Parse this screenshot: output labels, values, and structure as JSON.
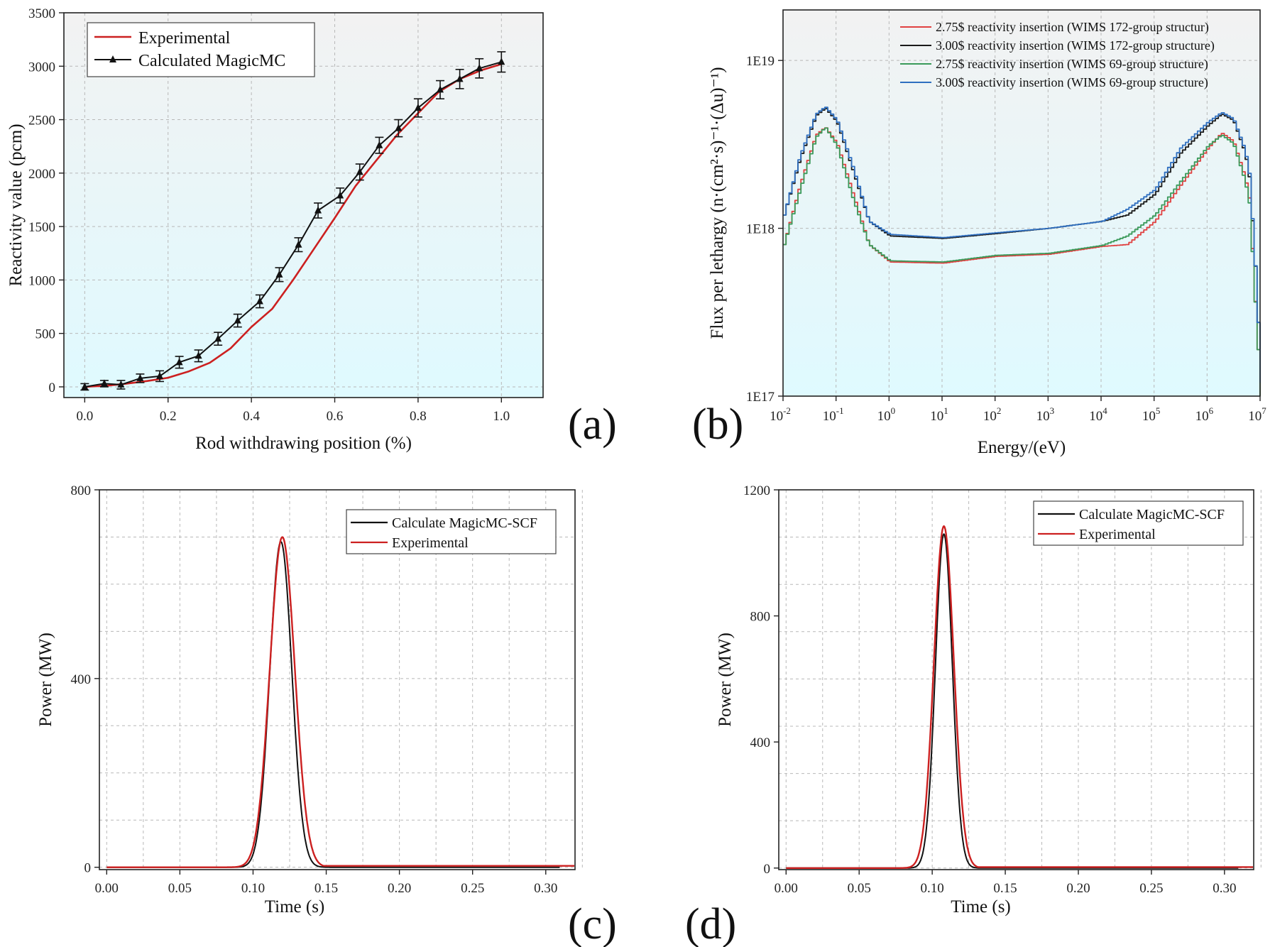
{
  "chart_data": [
    {
      "id": "a",
      "type": "line",
      "panel_label": "(a)",
      "xlabel": "Rod withdrawing position (%)",
      "ylabel": "Reactivity value (pcm)",
      "xlim": [
        -0.05,
        1.1
      ],
      "ylim": [
        -100,
        3500
      ],
      "xticks": [
        "0.0",
        "0.2",
        "0.4",
        "0.6",
        "0.8",
        "1.0"
      ],
      "yticks": [
        "0",
        "500",
        "1000",
        "1500",
        "2000",
        "2500",
        "3000",
        "3500"
      ],
      "grid": true,
      "legend": "top-left",
      "series": [
        {
          "name": "Experimental",
          "color": "#cc2020",
          "marker": "none",
          "x": [
            0,
            0.05,
            0.1,
            0.15,
            0.2,
            0.25,
            0.3,
            0.35,
            0.4,
            0.45,
            0.5,
            0.55,
            0.6,
            0.65,
            0.7,
            0.75,
            0.8,
            0.85,
            0.9,
            0.95,
            1.0
          ],
          "y": [
            0,
            10,
            30,
            55,
            85,
            145,
            225,
            360,
            560,
            730,
            1000,
            1290,
            1580,
            1880,
            2120,
            2360,
            2560,
            2760,
            2880,
            2960,
            3020
          ]
        },
        {
          "name": "Calculated MagicMC",
          "color": "#111111",
          "marker": "triangle",
          "x": [
            0,
            0.047,
            0.087,
            0.133,
            0.18,
            0.227,
            0.273,
            0.32,
            0.367,
            0.42,
            0.467,
            0.513,
            0.56,
            0.613,
            0.66,
            0.707,
            0.753,
            0.8,
            0.853,
            0.9,
            0.947,
            1.0
          ],
          "y": [
            0,
            30,
            20,
            80,
            100,
            230,
            290,
            450,
            620,
            800,
            1050,
            1330,
            1650,
            1790,
            2010,
            2260,
            2420,
            2610,
            2780,
            2880,
            2980,
            3040
          ],
          "err": [
            30,
            30,
            40,
            40,
            50,
            55,
            55,
            60,
            60,
            60,
            65,
            65,
            70,
            70,
            75,
            75,
            80,
            85,
            85,
            90,
            90,
            95
          ]
        }
      ]
    },
    {
      "id": "b",
      "type": "line",
      "panel_label": "(b)",
      "xlabel": "Energy/(eV)",
      "ylabel": "Flux per lethargy (n·(cm²·s)⁻¹·(Δu)⁻¹)",
      "xscale": "log",
      "yscale": "log",
      "xlim": [
        0.01,
        10000000
      ],
      "ylim": [
        1e+17,
        2e+19
      ],
      "xtick_exponents": [
        -2,
        -1,
        0,
        1,
        2,
        3,
        4,
        5,
        6,
        7
      ],
      "yticks": [
        "1E17",
        "1E18",
        "1E19"
      ],
      "grid": true,
      "legend": "top-right",
      "series": [
        {
          "name": "2.75$ reactivity insertion (WIMS 172-group structur)",
          "color": "#e04040",
          "x": [
            0.01,
            0.02,
            0.04,
            0.06,
            0.1,
            0.2,
            0.4,
            1,
            10,
            100,
            1000,
            10000,
            30000,
            100000,
            300000,
            1000000,
            1800000,
            3000000,
            5000000,
            6000000,
            8000000,
            10000000
          ],
          "y": [
            8e+17,
            1.8e+18,
            3.6e+18,
            4e+18,
            3.2e+18,
            1.6e+18,
            8e+17,
            6.3e+17,
            6.2e+17,
            6.8e+17,
            7e+17,
            7.8e+17,
            8e+17,
            1.1e+18,
            1.8e+18,
            3e+18,
            3.7e+18,
            3.3e+18,
            2e+18,
            1.5e+18,
            3e+17,
            1e+17
          ]
        },
        {
          "name": "3.00$ reactivity insertion (WIMS 172-group structure)",
          "color": "#1a1a1a",
          "x": [
            0.01,
            0.02,
            0.04,
            0.06,
            0.1,
            0.2,
            0.4,
            1,
            10,
            100,
            1000,
            10000,
            30000,
            100000,
            300000,
            1000000,
            1800000,
            3000000,
            5000000,
            6000000,
            8000000,
            10000000
          ],
          "y": [
            1.2e+18,
            2.6e+18,
            4.7e+18,
            5.2e+18,
            4.3e+18,
            2.2e+18,
            1.1e+18,
            9e+17,
            8.7e+17,
            9.3e+17,
            1e+18,
            1.1e+18,
            1.2e+18,
            1.6e+18,
            2.8e+18,
            4.1e+18,
            4.8e+18,
            4.4e+18,
            2.8e+18,
            2e+18,
            5e+17,
            1.2e+17
          ]
        },
        {
          "name": "2.75$ reactivity insertion (WIMS 69-group structure)",
          "color": "#3a9a5a",
          "x": [
            0.01,
            0.02,
            0.04,
            0.06,
            0.1,
            0.2,
            0.4,
            1,
            10,
            100,
            1000,
            10000,
            30000,
            100000,
            300000,
            1000000,
            1800000,
            3000000,
            5000000,
            6000000,
            8000000,
            10000000
          ],
          "y": [
            8e+17,
            1.7e+18,
            3.5e+18,
            4e+18,
            3.1e+18,
            1.5e+18,
            8e+17,
            6.4e+17,
            6.3e+17,
            6.9e+17,
            7.1e+17,
            7.9e+17,
            9e+17,
            1.2e+18,
            1.9e+18,
            3.1e+18,
            3.6e+18,
            3.2e+18,
            1.9e+18,
            1.4e+18,
            3e+17,
            1e+17
          ]
        },
        {
          "name": "3.00$ reactivity insertion (WIMS 69-group structure)",
          "color": "#2f6fc0",
          "x": [
            0.01,
            0.02,
            0.04,
            0.06,
            0.1,
            0.2,
            0.4,
            1,
            10,
            100,
            1000,
            10000,
            30000,
            100000,
            300000,
            1000000,
            1800000,
            3000000,
            5000000,
            6000000,
            8000000,
            10000000
          ],
          "y": [
            1.2e+18,
            2.7e+18,
            4.8e+18,
            5.3e+18,
            4.4e+18,
            2.3e+18,
            1.1e+18,
            9.2e+17,
            8.8e+17,
            9.4e+17,
            1e+18,
            1.1e+18,
            1.3e+18,
            1.7e+18,
            3e+18,
            4.3e+18,
            4.9e+18,
            4.5e+18,
            2.9e+18,
            2.1e+18,
            5e+17,
            1.2e+17
          ]
        }
      ]
    },
    {
      "id": "c",
      "type": "line",
      "panel_label": "(c)",
      "xlabel": "Time (s)",
      "ylabel": "Power (MW)",
      "xlim": [
        -0.005,
        0.32
      ],
      "ylim": [
        -5,
        800
      ],
      "xticks": [
        "0.00",
        "0.05",
        "0.10",
        "0.15",
        "0.20",
        "0.25",
        "0.30"
      ],
      "yticks": [
        "0",
        "400",
        "800"
      ],
      "grid": true,
      "legend": "top-right",
      "series": [
        {
          "name": "Calculate MagicMC-SCF",
          "color": "#111111",
          "peak_time": 0.119,
          "peak_value": 690,
          "width_s": 0.0075,
          "tail": 0,
          "end_time": 0.31
        },
        {
          "name": "Experimental",
          "color": "#cc2020",
          "peak_time": 0.12,
          "peak_value": 700,
          "width_s": 0.0085,
          "tail": 3,
          "end_time": 0.32
        }
      ]
    },
    {
      "id": "d",
      "type": "line",
      "panel_label": "(d)",
      "xlabel": "Time (s)",
      "ylabel": "Power (MW)",
      "xlim": [
        -0.005,
        0.32
      ],
      "ylim": [
        -5,
        1200
      ],
      "xticks": [
        "0.00",
        "0.05",
        "0.10",
        "0.15",
        "0.20",
        "0.25",
        "0.30"
      ],
      "yticks": [
        "0",
        "400",
        "800",
        "1200"
      ],
      "grid": true,
      "legend": "top-right",
      "series": [
        {
          "name": "Calculate MagicMC-SCF",
          "color": "#111111",
          "peak_time": 0.108,
          "peak_value": 1060,
          "width_s": 0.0058,
          "tail": 0,
          "end_time": 0.31
        },
        {
          "name": "Experimental",
          "color": "#cc2020",
          "peak_time": 0.108,
          "peak_value": 1085,
          "width_s": 0.0068,
          "tail": 3,
          "end_time": 0.32
        }
      ]
    }
  ]
}
